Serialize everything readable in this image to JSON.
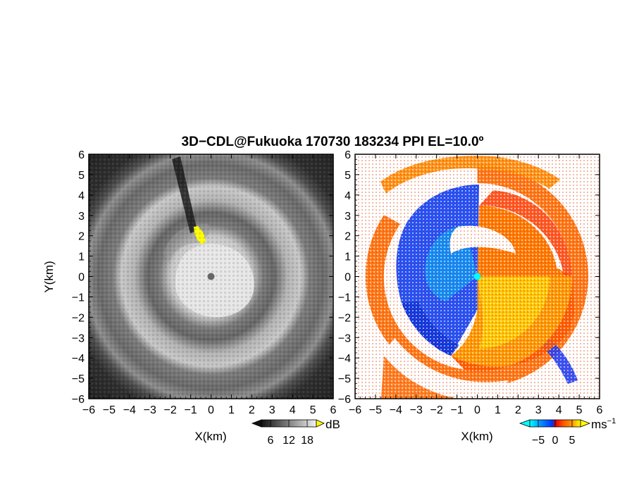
{
  "figure": {
    "title": "3D−CDL@Fukuoka 170730 183234 PPI EL=10.0º"
  },
  "chart_data": [
    {
      "type": "heatmap",
      "panel": "left",
      "quantity": "signal intensity",
      "xlabel": "X(km)",
      "ylabel": "Y(km)",
      "xlim": [
        -6,
        6
      ],
      "ylim": [
        -6,
        6
      ],
      "x_ticks": [
        "−6",
        "−5",
        "−4",
        "−3",
        "−2",
        "−1",
        "0",
        "1",
        "2",
        "3",
        "4",
        "5",
        "6"
      ],
      "y_ticks": [
        "6",
        "5",
        "4",
        "3",
        "2",
        "1",
        "0",
        "−1",
        "−2",
        "−3",
        "−4",
        "−5",
        "−6"
      ],
      "colorbar": {
        "unit": "dB",
        "ticks": [
          "6",
          "12",
          "18"
        ],
        "range": [
          3,
          21
        ],
        "colormap": "grayscale",
        "extend": "both"
      },
      "features": [
        {
          "kind": "ring",
          "radius_km": [
            3.8,
            4.6
          ],
          "level": "bright"
        },
        {
          "kind": "ring",
          "radius_km": [
            5.2,
            5.6
          ],
          "level": "bright"
        },
        {
          "kind": "core",
          "radius_km": [
            0,
            2.2
          ],
          "level": "bright",
          "offset_km": [
            0.4,
            -0.6
          ]
        },
        {
          "kind": "blocked_beam",
          "azimuth_deg": -18,
          "range_km": [
            2.2,
            6.0
          ]
        },
        {
          "kind": "strong_echo",
          "x_km": -0.5,
          "y_km": 2.2,
          "color": "#ffff00"
        },
        {
          "kind": "radar_site",
          "x_km": 0,
          "y_km": 0
        }
      ]
    },
    {
      "type": "heatmap",
      "panel": "right",
      "quantity": "radial velocity",
      "xlabel": "X(km)",
      "ylabel": "",
      "xlim": [
        -6,
        6
      ],
      "ylim": [
        -6,
        6
      ],
      "x_ticks": [
        "−6",
        "−5",
        "−4",
        "−3",
        "−2",
        "−1",
        "0",
        "1",
        "2",
        "3",
        "4",
        "5",
        "6"
      ],
      "y_ticks": [
        "6",
        "5",
        "4",
        "3",
        "2",
        "1",
        "0",
        "−1",
        "−2",
        "−3",
        "−4",
        "−5",
        "−6"
      ],
      "colorbar": {
        "unit": "ms",
        "unit_exponent": "−1",
        "ticks": [
          "−5",
          "0",
          "5"
        ],
        "range": [
          -7.5,
          7.5
        ],
        "colormap": "cyan-blue-red-orange-yellow",
        "extend": "both"
      },
      "features": [
        {
          "kind": "inbound_region",
          "azimuth_deg": [
            -200,
            -10
          ],
          "radius_km": [
            0.3,
            4.6
          ],
          "velocity_ms": -4
        },
        {
          "kind": "outbound_region",
          "azimuth_deg": [
            -10,
            160
          ],
          "radius_km": [
            0.3,
            4.6
          ],
          "velocity_ms": 4
        },
        {
          "kind": "outer_ring",
          "radius_km": [
            5.2,
            6.0
          ],
          "velocity_ms": 3
        },
        {
          "kind": "radar_site",
          "x_km": 0,
          "y_km": 0,
          "color": "#00ffff"
        }
      ]
    }
  ]
}
